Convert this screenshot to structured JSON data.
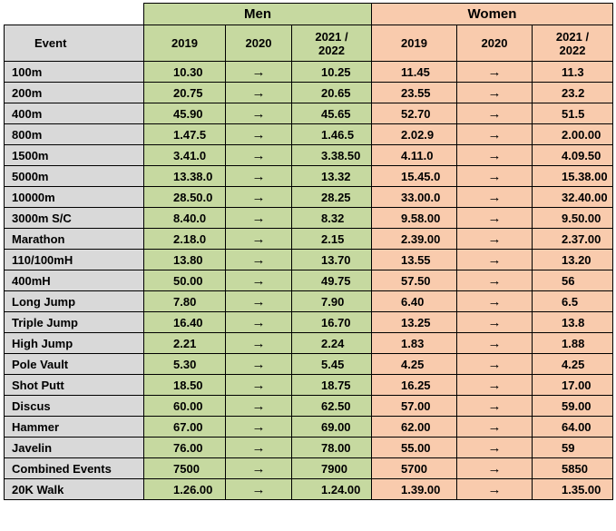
{
  "groups": {
    "men": "Men",
    "women": "Women"
  },
  "headers": {
    "event": "Event",
    "y2019": "2019",
    "y2020": "2020",
    "y2021a": "2021 /",
    "y2021b": "2022"
  },
  "arrow": "→",
  "rows": [
    {
      "event": "100m",
      "m2019": "10.30",
      "m2021": "10.25",
      "w2019": "11.45",
      "w2021": "11.3"
    },
    {
      "event": "200m",
      "m2019": "20.75",
      "m2021": "20.65",
      "w2019": "23.55",
      "w2021": "23.2"
    },
    {
      "event": "400m",
      "m2019": "45.90",
      "m2021": "45.65",
      "w2019": "52.70",
      "w2021": "51.5"
    },
    {
      "event": "800m",
      "m2019": "1.47.5",
      "m2021": "1.46.5",
      "w2019": "2.02.9",
      "w2021": "2.00.00"
    },
    {
      "event": "1500m",
      "m2019": "3.41.0",
      "m2021": "3.38.50",
      "w2019": "4.11.0",
      "w2021": "4.09.50"
    },
    {
      "event": "5000m",
      "m2019": "13.38.0",
      "m2021": "13.32",
      "w2019": "15.45.0",
      "w2021": "15.38.00"
    },
    {
      "event": "10000m",
      "m2019": "28.50.0",
      "m2021": "28.25",
      "w2019": "33.00.0",
      "w2021": "32.40.00"
    },
    {
      "event": "3000m S/C",
      "m2019": "8.40.0",
      "m2021": "8.32",
      "w2019": "9.58.00",
      "w2021": "9.50.00"
    },
    {
      "event": "Marathon",
      "m2019": "2.18.0",
      "m2021": "2.15",
      "w2019": "2.39.00",
      "w2021": "2.37.00"
    },
    {
      "event": "110/100mH",
      "m2019": "13.80",
      "m2021": "13.70",
      "w2019": "13.55",
      "w2021": "13.20"
    },
    {
      "event": "400mH",
      "m2019": "50.00",
      "m2021": "49.75",
      "w2019": "57.50",
      "w2021": "56"
    },
    {
      "event": "Long Jump",
      "m2019": "7.80",
      "m2021": "7.90",
      "w2019": "6.40",
      "w2021": "6.5"
    },
    {
      "event": "Triple Jump",
      "m2019": "16.40",
      "m2021": "16.70",
      "w2019": "13.25",
      "w2021": "13.8"
    },
    {
      "event": "High Jump",
      "m2019": "2.21",
      "m2021": "2.24",
      "w2019": "1.83",
      "w2021": "1.88"
    },
    {
      "event": "Pole Vault",
      "m2019": "5.30",
      "m2021": "5.45",
      "w2019": "4.25",
      "w2021": "4.25"
    },
    {
      "event": "Shot Putt",
      "m2019": "18.50",
      "m2021": "18.75",
      "w2019": "16.25",
      "w2021": "17.00"
    },
    {
      "event": "Discus",
      "m2019": "60.00",
      "m2021": "62.50",
      "w2019": "57.00",
      "w2021": "59.00"
    },
    {
      "event": "Hammer",
      "m2019": "67.00",
      "m2021": "69.00",
      "w2019": "62.00",
      "w2021": "64.00"
    },
    {
      "event": "Javelin",
      "m2019": "76.00",
      "m2021": "78.00",
      "w2019": "55.00",
      "w2021": "59"
    },
    {
      "event": "Combined Events",
      "m2019": "7500",
      "m2021": "7900",
      "w2019": "5700",
      "w2021": "5850"
    },
    {
      "event": "20K Walk",
      "m2019": "1.26.00",
      "m2021": "1.24.00",
      "w2019": "1.39.00",
      "w2021": "1.35.00"
    }
  ],
  "colors": {
    "men": "#c6d9a0",
    "women": "#f9cbad",
    "header": "#d9d9d9"
  }
}
